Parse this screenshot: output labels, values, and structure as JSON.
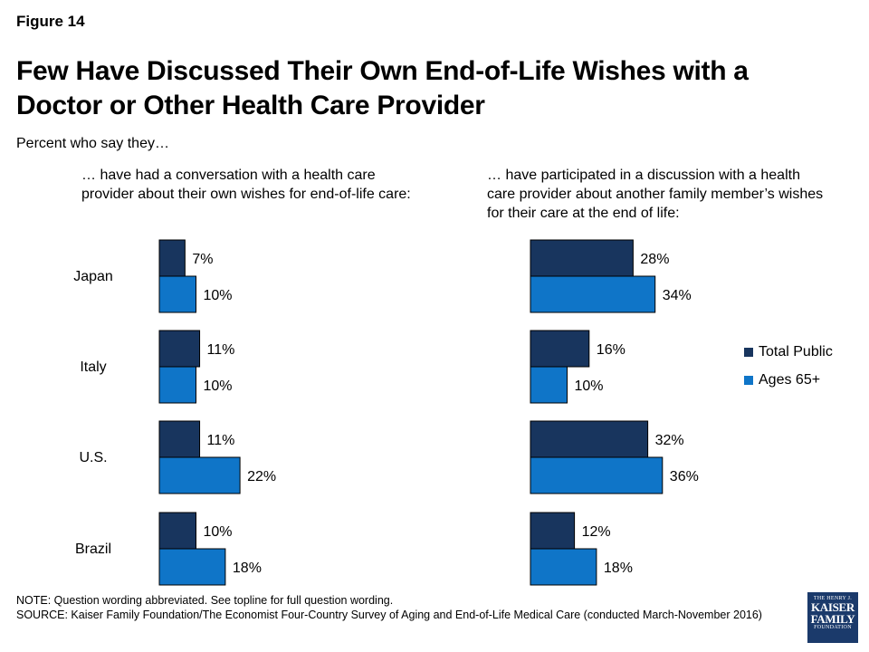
{
  "figure_label": "Figure 14",
  "title": "Few Have Discussed Their Own End-of-Life Wishes with a Doctor or Other Health Care Provider",
  "subtitle": "Percent who say they…",
  "legend": [
    {
      "name": "Total Public",
      "color": "#18355e"
    },
    {
      "name": "Ages 65+",
      "color": "#0f75c8"
    }
  ],
  "note": "NOTE: Question wording abbreviated. See topline for full question wording.",
  "source": "SOURCE: Kaiser Family Foundation/The Economist Four-Country Survey of Aging and End-of-Life Medical Care (conducted March-November 2016)",
  "logo": {
    "line1": "THE HENRY J.",
    "line2": "KAISER",
    "line3": "FAMILY",
    "line4": "FOUNDATION"
  },
  "chart_data": [
    {
      "type": "bar",
      "orientation": "horizontal",
      "title": "… have had a conversation with a health care provider about their own wishes for end-of-life care:",
      "categories": [
        "Japan",
        "Italy",
        "U.S.",
        "Brazil"
      ],
      "series": [
        {
          "name": "Total Public",
          "values": [
            7,
            11,
            11,
            10
          ],
          "labels": [
            "7%",
            "11%",
            "11%",
            "10%"
          ]
        },
        {
          "name": "Ages 65+",
          "values": [
            10,
            10,
            22,
            18
          ],
          "labels": [
            "10%",
            "10%",
            "22%",
            "18%"
          ]
        }
      ],
      "grid": false,
      "legend_position": "right"
    },
    {
      "type": "bar",
      "orientation": "horizontal",
      "title": "… have participated in a discussion with a health care provider about another family member’s wishes for their care at the end of life:",
      "categories": [
        "Japan",
        "Italy",
        "U.S.",
        "Brazil"
      ],
      "series": [
        {
          "name": "Total Public",
          "values": [
            28,
            16,
            32,
            12
          ],
          "labels": [
            "28%",
            "16%",
            "32%",
            "12%"
          ]
        },
        {
          "name": "Ages 65+",
          "values": [
            34,
            10,
            36,
            18
          ],
          "labels": [
            "34%",
            "10%",
            "36%",
            "18%"
          ]
        }
      ],
      "grid": false,
      "legend_position": "right"
    }
  ]
}
